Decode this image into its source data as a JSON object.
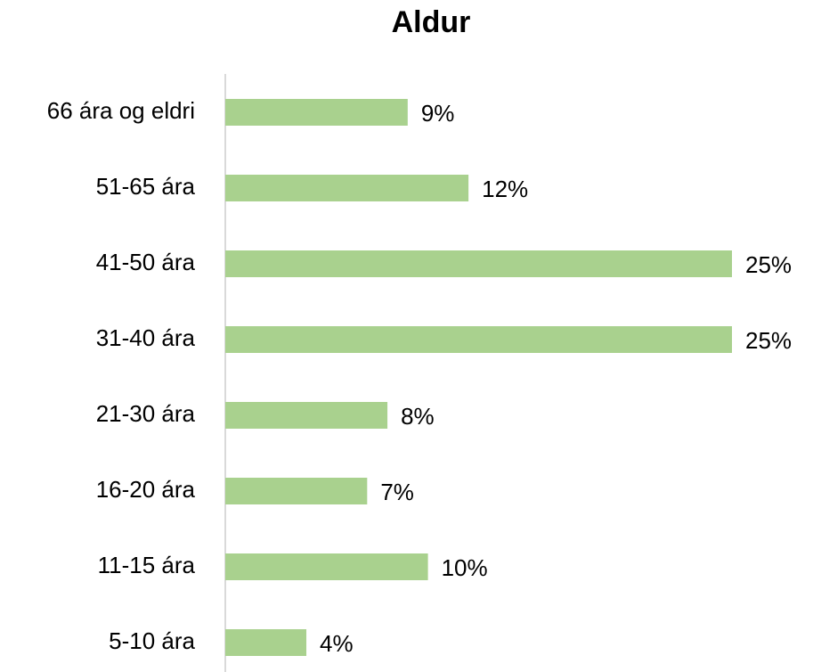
{
  "chart_data": {
    "type": "bar",
    "orientation": "horizontal",
    "title": "Aldur",
    "categories": [
      "66 ára og eldri",
      "51-65 ára",
      "41-50 ára",
      "31-40 ára",
      "21-30 ára",
      "16-20 ára",
      "11-15 ára",
      "5-10 ára"
    ],
    "values": [
      9,
      12,
      25,
      25,
      8,
      7,
      10,
      4
    ],
    "value_labels": [
      "9%",
      "12%",
      "25%",
      "25%",
      "8%",
      "7%",
      "10%",
      "4%"
    ],
    "color": "#a9d18e"
  }
}
